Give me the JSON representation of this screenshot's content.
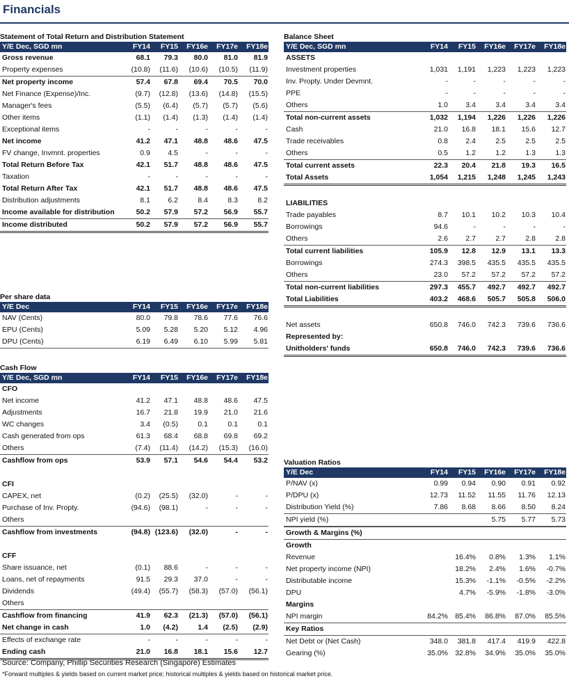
{
  "page_title": "Financials",
  "years": [
    "FY14",
    "FY15",
    "FY16e",
    "FY17e",
    "FY18e"
  ],
  "income": {
    "title": "Statement of Total Return and Distribution Statement",
    "header": "Y/E Dec, SGD mn",
    "rows": [
      {
        "label": "Gross revenue",
        "v": [
          "68.1",
          "79.3",
          "80.0",
          "81.0",
          "81.9"
        ],
        "bold": true
      },
      {
        "label": "Property expenses",
        "v": [
          "(10.8)",
          "(11.6)",
          "(10.6)",
          "(10.5)",
          "(11.9)"
        ]
      },
      {
        "label": "Net property income",
        "v": [
          "57.4",
          "67.8",
          "69.4",
          "70.5",
          "70.0"
        ],
        "bold": true
      },
      {
        "label": "Net Finance (Expense)/Inc.",
        "v": [
          "(9.7)",
          "(12.8)",
          "(13.6)",
          "(14.8)",
          "(15.5)"
        ]
      },
      {
        "label": "Manager's fees",
        "v": [
          "(5.5)",
          "(6.4)",
          "(5.7)",
          "(5.7)",
          "(5.6)"
        ]
      },
      {
        "label": "Other items",
        "v": [
          "(1.1)",
          "(1.4)",
          "(1.3)",
          "(1.4)",
          "(1.4)"
        ]
      },
      {
        "label": "Exceptional items",
        "v": [
          "-",
          "-",
          "-",
          "-",
          "-"
        ]
      },
      {
        "label": "Net income",
        "v": [
          "41.2",
          "47.1",
          "48.8",
          "48.6",
          "47.5"
        ],
        "bold": true
      },
      {
        "label": "FV change, Invmnt. properties",
        "v": [
          "0.9",
          "4.5",
          "-",
          "-",
          "-"
        ]
      },
      {
        "label": "Total Return Before Tax",
        "v": [
          "42.1",
          "51.7",
          "48.8",
          "48.6",
          "47.5"
        ],
        "bold": true
      },
      {
        "label": "Taxation",
        "v": [
          "-",
          "-",
          "-",
          "-",
          "-"
        ]
      },
      {
        "label": "Total Return After Tax",
        "v": [
          "42.1",
          "51.7",
          "48.8",
          "48.6",
          "47.5"
        ],
        "bold": true
      },
      {
        "label": "Distribution adjustments",
        "v": [
          "8.1",
          "6.2",
          "8.4",
          "8.3",
          "8.2"
        ]
      },
      {
        "label": "Income available for distribution",
        "v": [
          "50.2",
          "57.9",
          "57.2",
          "56.9",
          "55.7"
        ],
        "bold": true
      },
      {
        "label": "Income distributed",
        "v": [
          "50.2",
          "57.9",
          "57.2",
          "56.9",
          "55.7"
        ],
        "bold": true
      }
    ]
  },
  "per_share": {
    "title": "Per share data",
    "header": "Y/E Dec",
    "rows": [
      {
        "label": "NAV (Cents)",
        "v": [
          "80.0",
          "79.8",
          "78.6",
          "77.6",
          "76.6"
        ]
      },
      {
        "label": "EPU (Cents)",
        "v": [
          "5.09",
          "5.28",
          "5.20",
          "5.12",
          "4.96"
        ]
      },
      {
        "label": "DPU (Cents)",
        "v": [
          "6.19",
          "6.49",
          "6.10",
          "5.99",
          "5.81"
        ]
      }
    ]
  },
  "cash_flow": {
    "title": "Cash Flow",
    "header": "Y/E Dec, SGD mn",
    "rows": [
      {
        "label": "CFO",
        "v": [
          "",
          "",
          "",
          "",
          ""
        ],
        "bold": true
      },
      {
        "label": "Net income",
        "v": [
          "41.2",
          "47.1",
          "48.8",
          "48.6",
          "47.5"
        ]
      },
      {
        "label": "Adjustments",
        "v": [
          "16.7",
          "21.8",
          "19.9",
          "21.0",
          "21.6"
        ]
      },
      {
        "label": "WC changes",
        "v": [
          "3.4",
          "(0.5)",
          "0.1",
          "0.1",
          "0.1"
        ]
      },
      {
        "label": "Cash generated from ops",
        "v": [
          "61.3",
          "68.4",
          "68.8",
          "69.8",
          "69.2"
        ]
      },
      {
        "label": "Others",
        "v": [
          "(7.4)",
          "(11.4)",
          "(14.2)",
          "(15.3)",
          "(16.0)"
        ]
      },
      {
        "label": "Cashflow from ops",
        "v": [
          "53.9",
          "57.1",
          "54.6",
          "54.4",
          "53.2"
        ],
        "bold": true
      },
      {
        "label": "",
        "v": [
          "",
          "",
          "",
          "",
          ""
        ]
      },
      {
        "label": "CFI",
        "v": [
          "",
          "",
          "",
          "",
          ""
        ],
        "bold": true
      },
      {
        "label": "CAPEX, net",
        "v": [
          "(0.2)",
          "(25.5)",
          "(32.0)",
          "-",
          "-"
        ]
      },
      {
        "label": "Purchase of Inv. Propty.",
        "v": [
          "(94.6)",
          "(98.1)",
          "-",
          "-",
          "-"
        ]
      },
      {
        "label": "Others",
        "v": [
          "",
          "",
          "",
          "",
          ""
        ]
      },
      {
        "label": "Cashflow from investments",
        "v": [
          "(94.8)",
          "(123.6)",
          "(32.0)",
          "-",
          "-"
        ],
        "bold": true
      },
      {
        "label": "",
        "v": [
          "",
          "",
          "",
          "",
          ""
        ]
      },
      {
        "label": "CFF",
        "v": [
          "",
          "",
          "",
          "",
          ""
        ],
        "bold": true
      },
      {
        "label": "Share issuance, net",
        "v": [
          "(0.1)",
          "88.6",
          "-",
          "-",
          "-"
        ]
      },
      {
        "label": "Loans, net of repayments",
        "v": [
          "91.5",
          "29.3",
          "37.0",
          "-",
          "-"
        ]
      },
      {
        "label": "Dividends",
        "v": [
          "(49.4)",
          "(55.7)",
          "(58.3)",
          "(57.0)",
          "(56.1)"
        ]
      },
      {
        "label": "Others",
        "v": [
          "",
          "",
          "",
          "",
          ""
        ]
      },
      {
        "label": "Cashflow from financing",
        "v": [
          "41.9",
          "62.3",
          "(21.3)",
          "(57.0)",
          "(56.1)"
        ],
        "bold": true
      },
      {
        "label": "Net change in cash",
        "v": [
          "1.0",
          "(4.2)",
          "1.4",
          "(2.5)",
          "(2.9)"
        ],
        "bold": true
      },
      {
        "label": "Effects of exchange rate",
        "v": [
          "-",
          "-",
          "-",
          "-",
          "-"
        ]
      },
      {
        "label": "Ending cash",
        "v": [
          "21.0",
          "16.8",
          "18.1",
          "15.6",
          "12.7"
        ],
        "bold": true
      }
    ]
  },
  "balance_sheet": {
    "title": "Balance Sheet",
    "header": "Y/E Dec, SGD mn",
    "rows": [
      {
        "label": "ASSETS",
        "v": [
          "",
          "",
          "",
          "",
          ""
        ],
        "bold": true
      },
      {
        "label": "Investment properties",
        "v": [
          "1,031",
          "1,191",
          "1,223",
          "1,223",
          "1,223"
        ]
      },
      {
        "label": "Inv. Propty. Under Devmnt.",
        "v": [
          "-",
          "-",
          "-",
          "-",
          "-"
        ]
      },
      {
        "label": "PPE",
        "v": [
          "-",
          "-",
          "-",
          "-",
          "-"
        ]
      },
      {
        "label": "Others",
        "v": [
          "1.0",
          "3.4",
          "3.4",
          "3.4",
          "3.4"
        ]
      },
      {
        "label": "Total non-current assets",
        "v": [
          "1,032",
          "1,194",
          "1,226",
          "1,226",
          "1,226"
        ],
        "bold": true
      },
      {
        "label": "Cash",
        "v": [
          "21.0",
          "16.8",
          "18.1",
          "15.6",
          "12.7"
        ]
      },
      {
        "label": "Trade receivables",
        "v": [
          "0.8",
          "2.4",
          "2.5",
          "2.5",
          "2.5"
        ]
      },
      {
        "label": "Others",
        "v": [
          "0.5",
          "1.2",
          "1.2",
          "1.3",
          "1.3"
        ]
      },
      {
        "label": "Total current assets",
        "v": [
          "22.3",
          "20.4",
          "21.8",
          "19.3",
          "16.5"
        ],
        "bold": true
      },
      {
        "label": "Total Assets",
        "v": [
          "1,054",
          "1,215",
          "1,248",
          "1,245",
          "1,243"
        ],
        "bold": true
      },
      {
        "label": "",
        "v": [
          "",
          "",
          "",
          "",
          ""
        ]
      },
      {
        "label": "LIABILITIES",
        "v": [
          "",
          "",
          "",
          "",
          ""
        ],
        "bold": true
      },
      {
        "label": "Trade payables",
        "v": [
          "8.7",
          "10.1",
          "10.2",
          "10.3",
          "10.4"
        ]
      },
      {
        "label": "Borrowings",
        "v": [
          "94.6",
          "-",
          "-",
          "-",
          "-"
        ]
      },
      {
        "label": "Others",
        "v": [
          "2.6",
          "2.7",
          "2.7",
          "2.8",
          "2.8"
        ]
      },
      {
        "label": "Total current liabilities",
        "v": [
          "105.9",
          "12.8",
          "12.9",
          "13.1",
          "13.3"
        ],
        "bold": true
      },
      {
        "label": "Borrowings",
        "v": [
          "274.3",
          "398.5",
          "435.5",
          "435.5",
          "435.5"
        ]
      },
      {
        "label": "Others",
        "v": [
          "23.0",
          "57.2",
          "57.2",
          "57.2",
          "57.2"
        ]
      },
      {
        "label": "Total non-current liabilities",
        "v": [
          "297.3",
          "455.7",
          "492.7",
          "492.7",
          "492.7"
        ],
        "bold": true
      },
      {
        "label": "Total Liabilities",
        "v": [
          "403.2",
          "468.6",
          "505.7",
          "505.8",
          "506.0"
        ],
        "bold": true
      },
      {
        "label": "",
        "v": [
          "",
          "",
          "",
          "",
          ""
        ]
      },
      {
        "label": "Net assets",
        "v": [
          "650.8",
          "746.0",
          "742.3",
          "739.6",
          "736.6"
        ]
      },
      {
        "label": "Represented by:",
        "v": [
          "",
          "",
          "",
          "",
          ""
        ],
        "bold": true
      },
      {
        "label": "Unitholders' funds",
        "v": [
          "650.8",
          "746.0",
          "742.3",
          "739.6",
          "736.6"
        ],
        "bold": true
      }
    ]
  },
  "valuation": {
    "title": "Valuation Ratios",
    "header": "Y/E Dec",
    "rows": [
      {
        "label": "P/NAV (x)",
        "v": [
          "0.99",
          "0.94",
          "0.90",
          "0.91",
          "0.92"
        ]
      },
      {
        "label": "P/DPU (x)",
        "v": [
          "12.73",
          "11.52",
          "11.55",
          "11.76",
          "12.13"
        ]
      },
      {
        "label": "Distribution Yield (%)",
        "v": [
          "7.86",
          "8.68",
          "8.66",
          "8.50",
          "8.24"
        ]
      },
      {
        "label": "NPI yield (%)",
        "v": [
          "",
          "",
          "5.75",
          "5.77",
          "5.73"
        ]
      },
      {
        "label": "Growth & Margins (%)",
        "v": [
          "",
          "",
          "",
          "",
          ""
        ],
        "bold": true
      },
      {
        "label": "Growth",
        "v": [
          "",
          "",
          "",
          "",
          ""
        ],
        "bold": true
      },
      {
        "label": "Revenue",
        "v": [
          "",
          "16.4%",
          "0.8%",
          "1.3%",
          "1.1%"
        ]
      },
      {
        "label": "Net property income (NPI)",
        "v": [
          "",
          "18.2%",
          "2.4%",
          "1.6%",
          "-0.7%"
        ]
      },
      {
        "label": "Distributable income",
        "v": [
          "",
          "15.3%",
          "-1.1%",
          "-0.5%",
          "-2.2%"
        ]
      },
      {
        "label": "DPU",
        "v": [
          "",
          "4.7%",
          "-5.9%",
          "-1.8%",
          "-3.0%"
        ]
      },
      {
        "label": "Margins",
        "v": [
          "",
          "",
          "",
          "",
          ""
        ],
        "bold": true
      },
      {
        "label": "NPI margin",
        "v": [
          "84.2%",
          "85.4%",
          "86.8%",
          "87.0%",
          "85.5%"
        ]
      },
      {
        "label": "Key Ratios",
        "v": [
          "",
          "",
          "",
          "",
          ""
        ],
        "bold": true
      },
      {
        "label": "Net Debt or (Net Cash)",
        "v": [
          "348.0",
          "381.8",
          "417.4",
          "419.9",
          "422.8"
        ]
      },
      {
        "label": "Gearing (%)",
        "v": [
          "35.0%",
          "32.8%",
          "34.9%",
          "35.0%",
          "35.0%"
        ]
      }
    ]
  },
  "footer": {
    "source": "Source: Company, Phillip Securities Research (Singapore) Estimates",
    "note": "*Forward multiples & yields based on current market price; historical multiples & yields based on historical market price."
  }
}
